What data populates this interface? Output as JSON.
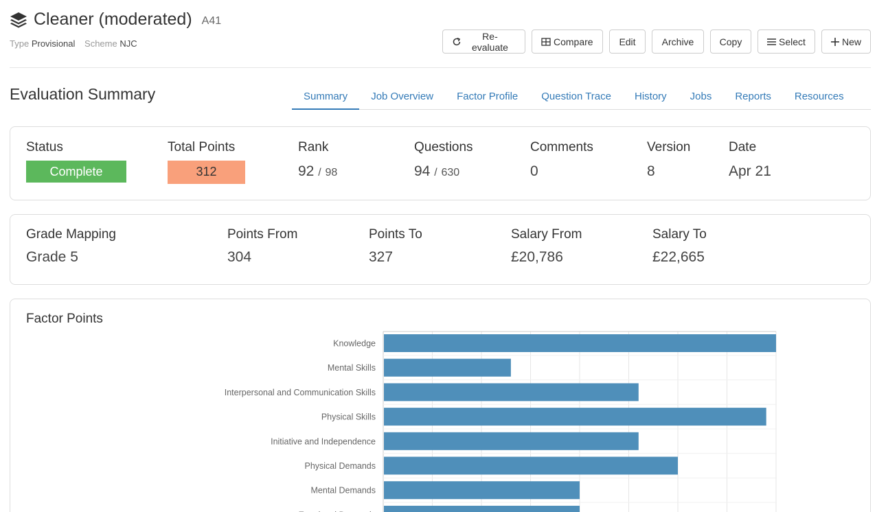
{
  "header": {
    "title": "Cleaner (moderated)",
    "code": "A41",
    "type_label": "Type",
    "type_value": "Provisional",
    "scheme_label": "Scheme",
    "scheme_value": "NJC",
    "logo_icon": "layers-icon"
  },
  "toolbar": {
    "reevaluate": "Re-evaluate",
    "compare": "Compare",
    "edit": "Edit",
    "archive": "Archive",
    "copy": "Copy",
    "select": "Select",
    "new": "New"
  },
  "section": {
    "title": "Evaluation Summary"
  },
  "tabs": [
    "Summary",
    "Job Overview",
    "Factor Profile",
    "Question Trace",
    "History",
    "Jobs",
    "Reports",
    "Resources"
  ],
  "summary": {
    "status_label": "Status",
    "status_value": "Complete",
    "points_label": "Total Points",
    "points_value": "312",
    "rank_label": "Rank",
    "rank_value": "92",
    "rank_total": "98",
    "questions_label": "Questions",
    "questions_value": "94",
    "questions_total": "630",
    "comments_label": "Comments",
    "comments_value": "0",
    "version_label": "Version",
    "version_value": "8",
    "date_label": "Date",
    "date_value": "Apr 21",
    "sep": "/"
  },
  "grade": {
    "mapping_label": "Grade Mapping",
    "mapping_value": "Grade 5",
    "from_label": "Points From",
    "from_value": "304",
    "to_label": "Points To",
    "to_value": "327",
    "salary_from_label": "Salary From",
    "salary_from_value": "£20,786",
    "salary_to_label": "Salary To",
    "salary_to_value": "£22,665"
  },
  "colors": {
    "status_complete": "#5cb85c",
    "points_badge": "#f9a07b",
    "bar": "#4f8fba",
    "link": "#337ab7"
  },
  "chart_data": {
    "type": "bar",
    "orientation": "horizontal",
    "title": "Factor Points",
    "categories": [
      "Knowledge",
      "Mental Skills",
      "Interpersonal and Communication Skills",
      "Physical Skills",
      "Initiative and Independence",
      "Physical Demands",
      "Mental Demands",
      "Emotional Demands"
    ],
    "values": [
      40,
      13,
      26,
      39,
      26,
      30,
      20,
      20
    ],
    "xlim": [
      0,
      40
    ],
    "grid": true
  }
}
